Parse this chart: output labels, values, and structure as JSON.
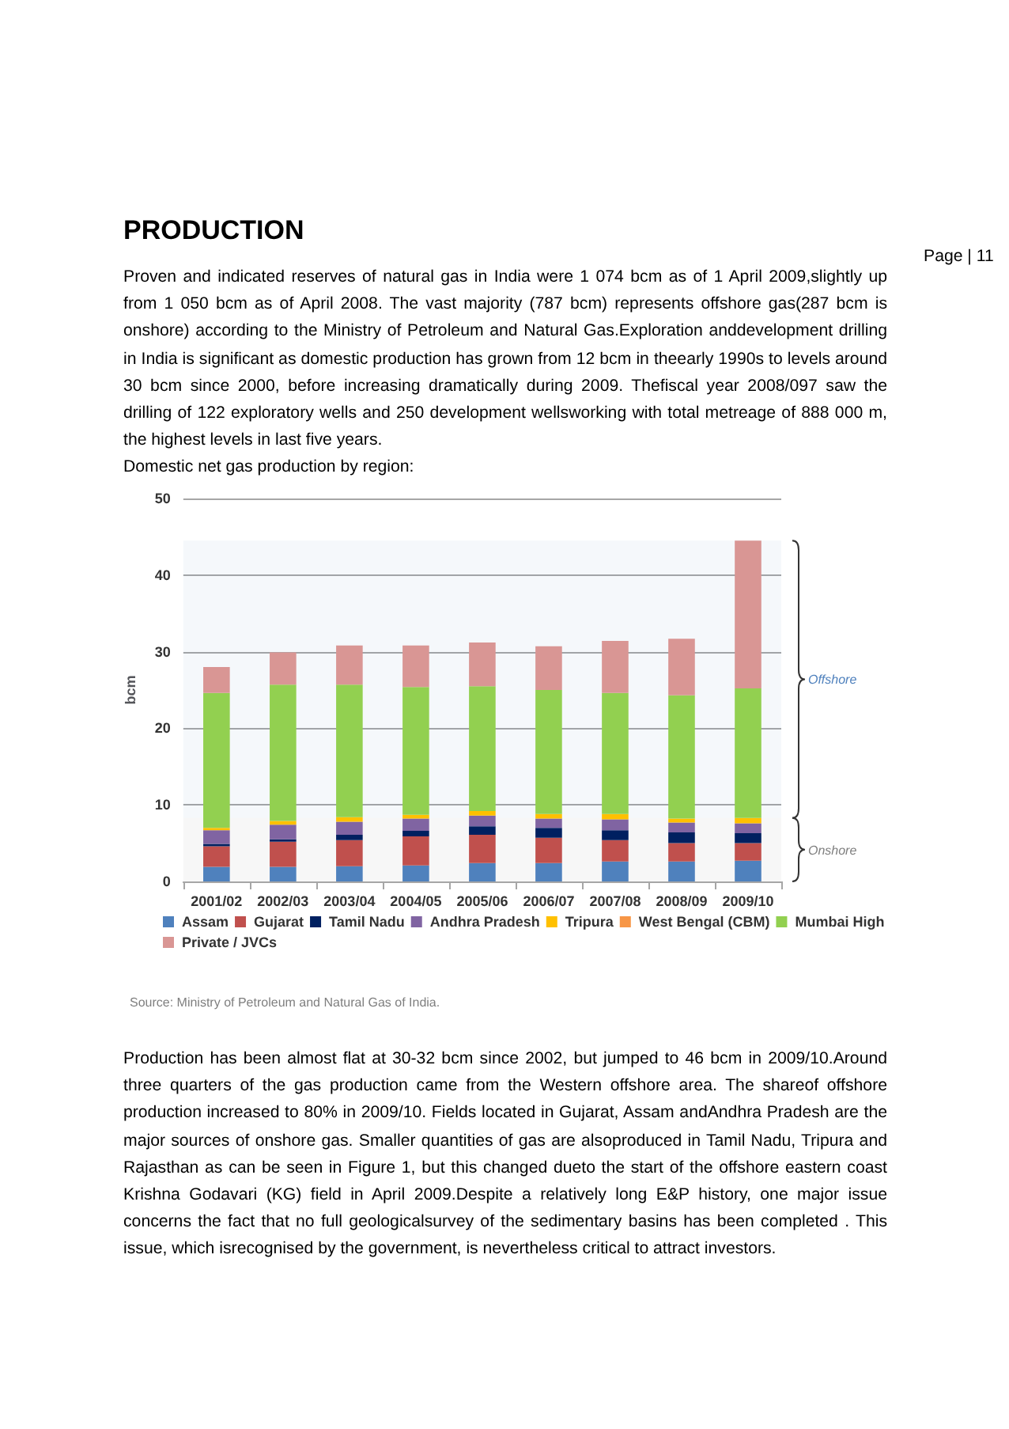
{
  "chart_data": {
    "type": "bar",
    "stacked": true,
    "title": "PRODUCTION",
    "subtitle": "Domestic net gas production by region:",
    "ylabel": "bcm",
    "categories": [
      "2001/02",
      "2002/03",
      "2003/04",
      "2004/05",
      "2005/06",
      "2006/07",
      "2007/08",
      "2008/09",
      "2009/10"
    ],
    "series": [
      {
        "name": "Assam",
        "color": "#4f81bd",
        "values": [
          1.9,
          1.9,
          2.0,
          2.1,
          2.4,
          2.4,
          2.6,
          2.6,
          2.7
        ]
      },
      {
        "name": "Gujarat",
        "color": "#c0504d",
        "values": [
          2.7,
          3.3,
          3.4,
          3.8,
          3.7,
          3.3,
          2.8,
          2.4,
          2.3
        ]
      },
      {
        "name": "Tamil Nadu",
        "color": "#002060",
        "values": [
          0.3,
          0.3,
          0.7,
          0.7,
          1.1,
          1.3,
          1.3,
          1.4,
          1.3
        ]
      },
      {
        "name": "Andhra Pradesh",
        "color": "#8064a2",
        "values": [
          1.8,
          1.9,
          1.7,
          1.6,
          1.4,
          1.2,
          1.4,
          1.3,
          1.3
        ]
      },
      {
        "name": "Tripura",
        "color": "#ffc000",
        "values": [
          0.3,
          0.5,
          0.6,
          0.5,
          0.6,
          0.6,
          0.7,
          0.5,
          0.7
        ]
      },
      {
        "name": "West Bengal (CBM)",
        "color": "#f79646",
        "values": [
          0,
          0,
          0,
          0,
          0,
          0,
          0,
          0,
          0
        ]
      },
      {
        "name": "Mumbai High",
        "color": "#92d050",
        "values": [
          17.6,
          17.8,
          17.3,
          16.7,
          16.3,
          16.2,
          15.8,
          16.1,
          16.9
        ]
      },
      {
        "name": "Private / JVCs",
        "color": "#d99694",
        "values": [
          3.4,
          4.2,
          5.1,
          5.4,
          5.7,
          5.7,
          6.8,
          7.4,
          19.3
        ]
      }
    ],
    "ylim": [
      0,
      50
    ],
    "yticks": [
      0,
      10,
      20,
      30,
      40,
      50
    ],
    "grid": "y",
    "legend": "bottom",
    "bands": [
      {
        "axis": "y",
        "from": 8.3,
        "to": 44.5,
        "label": "Offshore",
        "color": "#4f81bd"
      },
      {
        "axis": "y",
        "from": 0,
        "to": 8.3,
        "label": "Onshore",
        "color": "#7f7f7f"
      }
    ],
    "annotations": [
      "Proven and indicated reserves of natural gas in India were 1 074 bcm as of 1 April 2009,slightly up from 1 050 bcm as of April 2008. The vast majority (787 bcm) represents offshore gas(287 bcm is onshore) according to the Ministry of Petroleum and Natural Gas.Exploration anddevelopment drilling in India is significant as domestic production has grown from 12 bcm in theearly 1990s to levels around 30 bcm since 2000, before increasing dramatically during 2009. Thefiscal year 2008/097 saw the drilling of 122 exploratory wells and 250 development wellsworking with total metreage of 888 000 m, the highest levels in last five years.",
      "Page | 11",
      "Source: Ministry of Petroleum and Natural Gas of India.",
      "Production has been almost flat at 30-32 bcm since 2002, but jumped to 46 bcm in 2009/10.Around three quarters of the gas production came from the Western offshore area. The shareof offshore production increased to 80% in 2009/10. Fields located in Gujarat, Assam andAndhra Pradesh are the major sources of onshore gas. Smaller quantities of gas are alsoproduced in Tamil Nadu, Tripura and Rajasthan as can be seen in Figure 1, but this changed dueto the start of the offshore eastern coast Krishna Godavari (KG) field in April 2009.Despite a relatively long E&P history, one major issue concerns the fact that no full geologicalsurvey of the sedimentary basins has been completed . This issue, which isrecognised by the government, is nevertheless critical to attract investors."
    ]
  }
}
